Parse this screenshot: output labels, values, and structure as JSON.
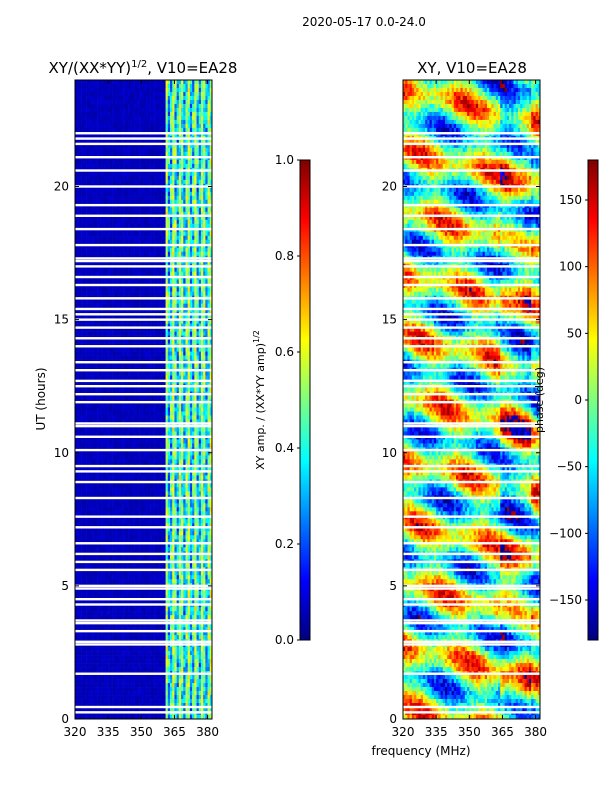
{
  "figure_title": "2020-05-17 0.0-24.0",
  "colors": {
    "jet": [
      "#00007f",
      "#0000ff",
      "#007fff",
      "#00ffff",
      "#7fff7f",
      "#ffff00",
      "#ff7f00",
      "#ff0000",
      "#7f0000"
    ],
    "gap": "#ffffff"
  },
  "chart_data": [
    {
      "type": "heatmap",
      "title_main": "XY/(XX*YY)",
      "title_sup": "1/2",
      "title_suffix": ", V10=EA28",
      "xlabel": "frequency (MHz)",
      "ylabel": "UT (hours)",
      "xlim": [
        320,
        382
      ],
      "ylim": [
        0,
        24
      ],
      "xticks": [
        320,
        335,
        350,
        365,
        380
      ],
      "yticks": [
        0,
        5,
        10,
        15,
        20
      ],
      "colorbar": {
        "label_main": "XY amp. / (XX*YY amp)",
        "label_sup": "1/2",
        "range": [
          0.0,
          1.0
        ],
        "ticks": [
          "0.0",
          "0.2",
          "0.4",
          "0.6",
          "0.8",
          "1.0"
        ]
      },
      "description": "Low amplitude (~0.05) below ~360 MHz, elevated amplitude (0.2-0.6) between ~360 and 382 MHz",
      "gaps_ut_hours": [
        0.25,
        0.45,
        1.7,
        2.8,
        2.9,
        3.3,
        3.6,
        3.7,
        4.3,
        4.5,
        4.9,
        5.0,
        5.6,
        5.9,
        6.2,
        6.6,
        7.2,
        7.6,
        8.3,
        8.9,
        9.3,
        9.5,
        10.1,
        10.6,
        11.0,
        11.1,
        11.9,
        12.2,
        12.5,
        12.7,
        13.1,
        13.4,
        14.0,
        14.3,
        14.7,
        15.0,
        15.2,
        15.4,
        15.8,
        16.3,
        16.6,
        17.0,
        17.2,
        17.3,
        17.8,
        18.4,
        18.9,
        19.3,
        20.0,
        20.6,
        21.1,
        21.6,
        21.8,
        22.0
      ]
    },
    {
      "type": "heatmap",
      "title_main": "XY, V10=EA28",
      "xlabel": "frequency (MHz)",
      "ylabel": "",
      "xlim": [
        320,
        382
      ],
      "ylim": [
        0,
        24
      ],
      "xticks": [
        320,
        335,
        350,
        365,
        380
      ],
      "yticks": [
        0,
        5,
        10,
        15,
        20
      ],
      "colorbar": {
        "label_main": "phase (deg)",
        "range": [
          -180,
          180
        ],
        "ticks": [
          "−150",
          "−100",
          "−50",
          "0",
          "50",
          "100",
          "150"
        ],
        "tick_values": [
          -150,
          -100,
          -50,
          0,
          50,
          100,
          150
        ]
      },
      "description": "Phase wrapping across full range -180 to 180 deg with banded structure",
      "gaps_ut_hours": [
        0.25,
        0.45,
        1.7,
        2.8,
        2.9,
        3.3,
        3.6,
        3.7,
        4.3,
        4.5,
        4.9,
        5.0,
        5.6,
        5.9,
        6.2,
        6.6,
        7.2,
        7.6,
        8.3,
        8.9,
        9.3,
        9.5,
        10.1,
        10.6,
        11.0,
        11.1,
        11.9,
        12.2,
        12.5,
        12.7,
        13.1,
        13.4,
        14.0,
        14.3,
        14.7,
        15.0,
        15.2,
        15.4,
        15.8,
        16.3,
        16.6,
        17.0,
        17.2,
        17.3,
        17.8,
        18.4,
        18.9,
        19.3,
        20.0,
        20.6,
        21.1,
        21.6,
        21.8,
        22.0
      ]
    }
  ]
}
